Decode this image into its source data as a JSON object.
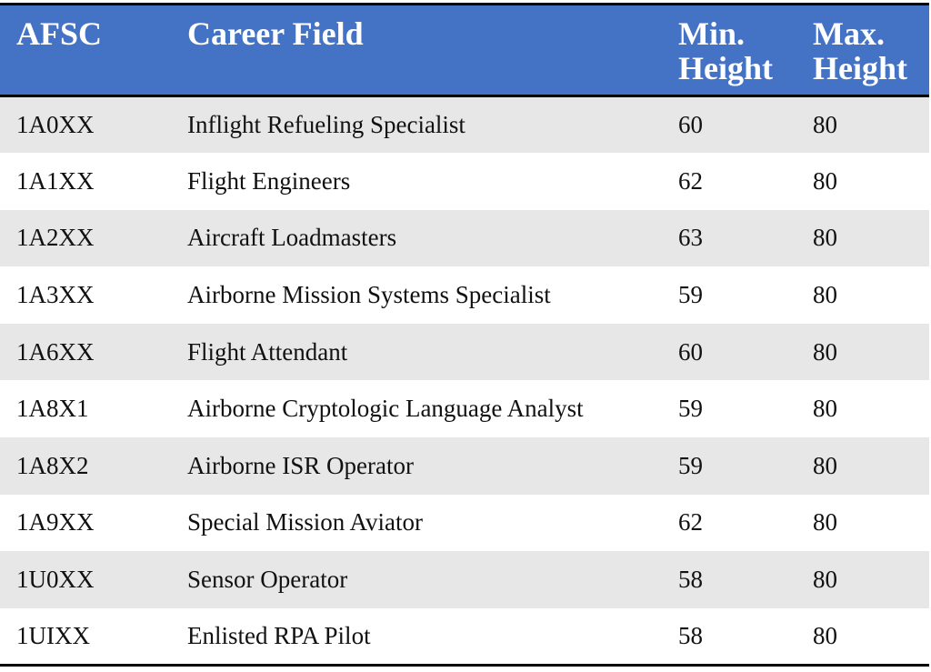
{
  "table": {
    "headers": {
      "afsc": "AFSC",
      "career_field": "Career Field",
      "min_height_line1": "Min.",
      "min_height_line2": "Height",
      "max_height_line1": "Max.",
      "max_height_line2": "Height"
    },
    "rows": [
      {
        "afsc": "1A0XX",
        "career_field": "Inflight Refueling Specialist",
        "min_height": "60",
        "max_height": "80"
      },
      {
        "afsc": "1A1XX",
        "career_field": "Flight Engineers",
        "min_height": "62",
        "max_height": "80"
      },
      {
        "afsc": "1A2XX",
        "career_field": "Aircraft Loadmasters",
        "min_height": "63",
        "max_height": "80"
      },
      {
        "afsc": "1A3XX",
        "career_field": "Airborne Mission Systems Specialist",
        "min_height": "59",
        "max_height": "80"
      },
      {
        "afsc": "1A6XX",
        "career_field": "Flight Attendant",
        "min_height": "60",
        "max_height": "80"
      },
      {
        "afsc": "1A8X1",
        "career_field": "Airborne Cryptologic Language Analyst",
        "min_height": "59",
        "max_height": "80"
      },
      {
        "afsc": "1A8X2",
        "career_field": "Airborne ISR Operator",
        "min_height": "59",
        "max_height": "80"
      },
      {
        "afsc": "1A9XX",
        "career_field": "Special Mission Aviator",
        "min_height": "62",
        "max_height": "80"
      },
      {
        "afsc": "1U0XX",
        "career_field": "Sensor Operator",
        "min_height": "58",
        "max_height": "80"
      },
      {
        "afsc": "1UIXX",
        "career_field": "Enlisted RPA Pilot",
        "min_height": "58",
        "max_height": "80"
      }
    ],
    "colors": {
      "header_bg": "#4472c4",
      "header_text": "#ffffff",
      "stripe": "#e7e7e7",
      "rule": "#000000"
    }
  }
}
